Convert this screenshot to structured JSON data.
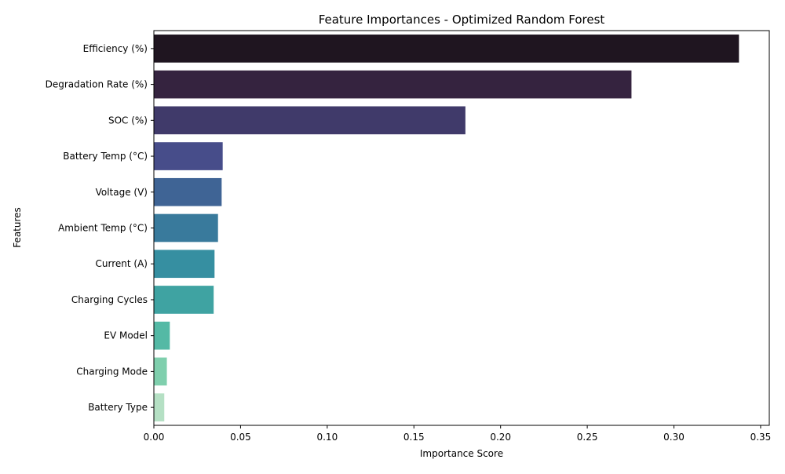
{
  "chart_data": {
    "type": "bar",
    "orientation": "horizontal",
    "title": "Feature Importances - Optimized Random Forest",
    "xlabel": "Importance Score",
    "ylabel": "Features",
    "xlim": [
      0,
      0.355
    ],
    "xticks": [
      0.0,
      0.05,
      0.1,
      0.15,
      0.2,
      0.25,
      0.3,
      0.35
    ],
    "xtick_labels": [
      "0.00",
      "0.05",
      "0.10",
      "0.15",
      "0.20",
      "0.25",
      "0.30",
      "0.35"
    ],
    "grid": false,
    "categories": [
      "Efficiency (%)",
      "Degradation Rate (%)",
      "SOC (%)",
      "Battery Temp (°C)",
      "Voltage (V)",
      "Ambient Temp (°C)",
      "Current (A)",
      "Charging Cycles",
      "EV Model",
      "Charging Mode",
      "Battery Type"
    ],
    "values": [
      0.3375,
      0.2755,
      0.1797,
      0.0397,
      0.0391,
      0.037,
      0.035,
      0.0345,
      0.0092,
      0.0075,
      0.006
    ],
    "colors": [
      "#1f1520",
      "#35233f",
      "#403a6a",
      "#474d8a",
      "#3f6495",
      "#397a9c",
      "#368fa1",
      "#3fa3a2",
      "#54b9a5",
      "#7fcfad",
      "#b5e0c4"
    ]
  }
}
